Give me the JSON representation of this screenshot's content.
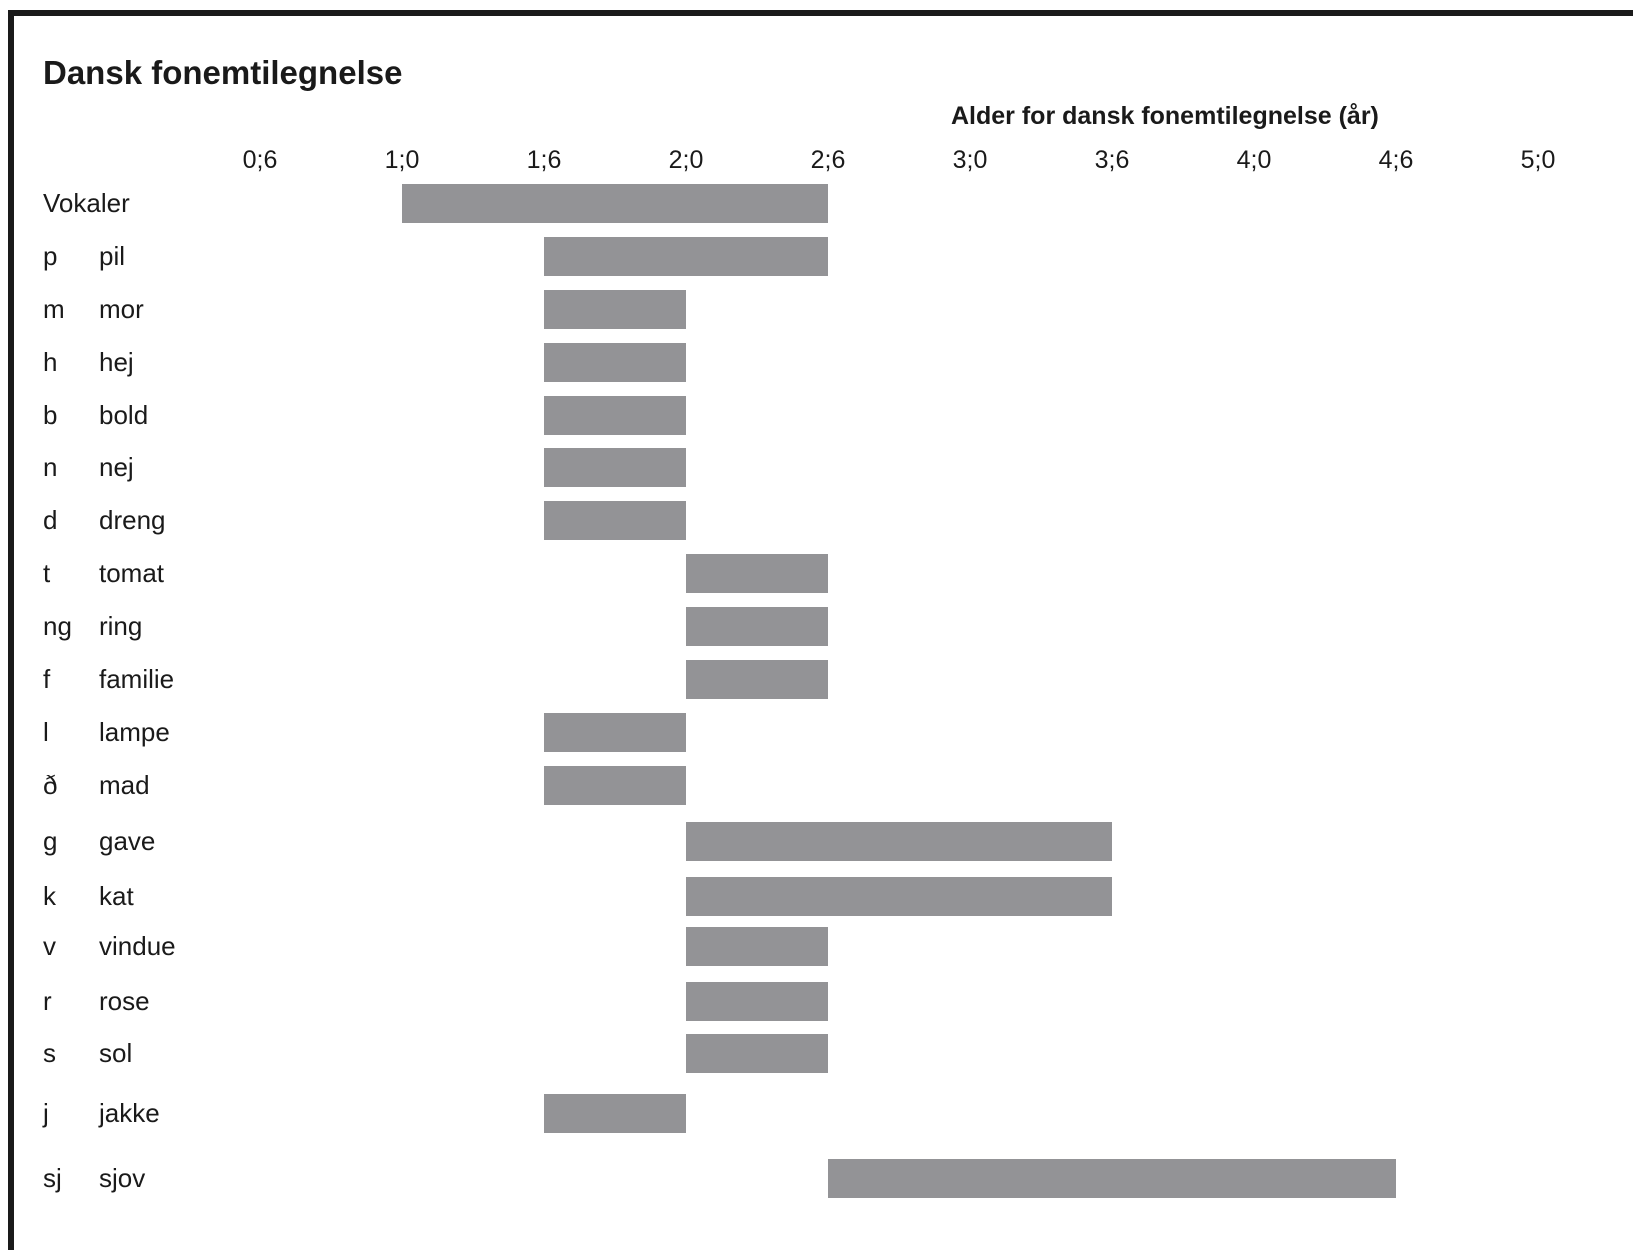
{
  "chart_data": {
    "type": "bar",
    "orientation": "horizontal",
    "subtype": "range",
    "title": "Dansk fonemtilegnelse",
    "xlabel": "Alder for dansk fonemtilegnelse (år)",
    "ylabel": "",
    "x_unit": "years",
    "xlim": [
      0.5,
      5.0
    ],
    "ticks": [
      {
        "value": 0.5,
        "label": "0;6"
      },
      {
        "value": 1.0,
        "label": "1;0"
      },
      {
        "value": 1.5,
        "label": "1;6"
      },
      {
        "value": 2.0,
        "label": "2;0"
      },
      {
        "value": 2.5,
        "label": "2;6"
      },
      {
        "value": 3.0,
        "label": "3;0"
      },
      {
        "value": 3.5,
        "label": "3;6"
      },
      {
        "value": 4.0,
        "label": "4;0"
      },
      {
        "value": 4.5,
        "label": "4;6"
      },
      {
        "value": 5.0,
        "label": "5;0"
      }
    ],
    "bar_color": "#939396",
    "rows": [
      {
        "label": "Vokaler",
        "word": "",
        "start": 1.0,
        "end": 2.5
      },
      {
        "label": "p",
        "word": "pil",
        "start": 1.5,
        "end": 2.5
      },
      {
        "label": "m",
        "word": "mor",
        "start": 1.5,
        "end": 2.0
      },
      {
        "label": "h",
        "word": "hej",
        "start": 1.5,
        "end": 2.0
      },
      {
        "label": "b",
        "word": "bold",
        "start": 1.5,
        "end": 2.0
      },
      {
        "label": "n",
        "word": "nej",
        "start": 1.5,
        "end": 2.0
      },
      {
        "label": "d",
        "word": "dreng",
        "start": 1.5,
        "end": 2.0
      },
      {
        "label": "t",
        "word": "tomat",
        "start": 2.0,
        "end": 2.5
      },
      {
        "label": "ng",
        "word": "ring",
        "start": 2.0,
        "end": 2.5
      },
      {
        "label": "f",
        "word": "familie",
        "start": 2.0,
        "end": 2.5
      },
      {
        "label": "l",
        "word": "lampe",
        "start": 1.5,
        "end": 2.0
      },
      {
        "label": "ð",
        "word": "mad",
        "start": 1.5,
        "end": 2.0
      },
      {
        "label": "g",
        "word": "gave",
        "start": 2.0,
        "end": 3.5
      },
      {
        "label": "k",
        "word": "kat",
        "start": 2.0,
        "end": 3.5
      },
      {
        "label": "v",
        "word": "vindue",
        "start": 2.0,
        "end": 2.5
      },
      {
        "label": "r",
        "word": "rose",
        "start": 2.0,
        "end": 2.5
      },
      {
        "label": "s",
        "word": "sol",
        "start": 2.0,
        "end": 2.5
      },
      {
        "label": "j",
        "word": "jakke",
        "start": 1.5,
        "end": 2.0
      },
      {
        "label": "sj",
        "word": "sjov",
        "start": 2.5,
        "end": 4.5
      }
    ]
  }
}
